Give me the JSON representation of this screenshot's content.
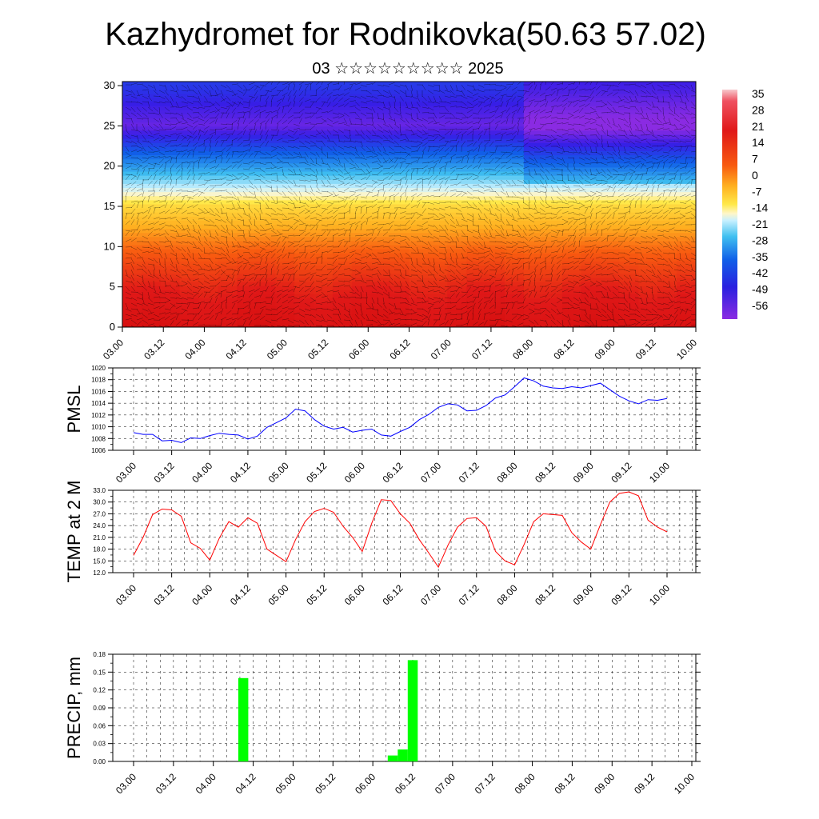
{
  "header": {
    "title": "Kazhydromet for Rodnikovka(50.63 57.02)",
    "subtitle": "03 ☆☆☆☆☆☆☆☆☆ 2025"
  },
  "chart_data": [
    {
      "type": "heatmap",
      "title": "",
      "xlabel": "",
      "ylabel": "",
      "x_ticks": [
        "03.00",
        "03.12",
        "04.00",
        "04.12",
        "05.00",
        "05.12",
        "06.00",
        "06.12",
        "07.00",
        "07.12",
        "08.00",
        "08.12",
        "09.00",
        "09.12",
        "10.00"
      ],
      "y_ticks": [
        0,
        5,
        10,
        15,
        20,
        25,
        30
      ],
      "ylim": [
        0,
        30.5
      ],
      "colorbar": {
        "labels": [
          35,
          28,
          21,
          14,
          7,
          0,
          -7,
          -14,
          -21,
          -28,
          -35,
          -42,
          -49,
          -56
        ],
        "range": [
          -60,
          38
        ]
      },
      "overlay": "wind barbs",
      "temperature_profile": {
        "levels": [
          0,
          5,
          10,
          15,
          20,
          25,
          30
        ],
        "values": [
          33,
          24,
          12,
          -2,
          -30,
          -56,
          -45
        ]
      },
      "colors": {
        "hot": "#e81818",
        "neutral": "#ffe94a",
        "cold": "#2a20e0",
        "coldest": "#8a2be2"
      }
    },
    {
      "type": "line",
      "title": "",
      "ylabel": "PMSL",
      "ylim": [
        1006,
        1020
      ],
      "y_ticks": [
        1006,
        1008,
        1010,
        1012,
        1014,
        1016,
        1018,
        1020
      ],
      "x_ticks": [
        "03.00",
        "03.12",
        "04.00",
        "04.12",
        "05.00",
        "05.12",
        "06.00",
        "06.12",
        "07.00",
        "07.12",
        "08.00",
        "08.12",
        "09.00",
        "09.12",
        "10.00"
      ],
      "x_hours_step": 3,
      "values": [
        1009.0,
        1008.7,
        1008.7,
        1007.6,
        1007.7,
        1007.3,
        1008.1,
        1008.0,
        1008.5,
        1008.9,
        1008.7,
        1008.6,
        1007.9,
        1008.4,
        1009.9,
        1010.7,
        1011.5,
        1013.0,
        1012.7,
        1011.2,
        1010.1,
        1009.6,
        1009.9,
        1009.1,
        1009.4,
        1009.6,
        1008.6,
        1008.4,
        1009.2,
        1009.9,
        1011.2,
        1012.1,
        1013.3,
        1013.9,
        1013.7,
        1012.7,
        1012.8,
        1013.6,
        1014.9,
        1015.4,
        1016.8,
        1018.3,
        1017.8,
        1016.9,
        1016.6,
        1016.5,
        1016.8,
        1016.6,
        1017.0,
        1017.4,
        1016.3,
        1015.2,
        1014.4,
        1013.9,
        1014.6,
        1014.5,
        1014.8
      ],
      "color": "#0000ff"
    },
    {
      "type": "line",
      "title": "",
      "ylabel": "TEMP at 2 M",
      "ylim": [
        12.0,
        33.0
      ],
      "y_ticks": [
        "12.0",
        "15.0",
        "18.0",
        "21.0",
        "24.0",
        "27.0",
        "30.0",
        "33.0"
      ],
      "x_ticks": [
        "03.00",
        "03.12",
        "04.00",
        "04.12",
        "05.00",
        "05.12",
        "06.00",
        "06.12",
        "07.00",
        "07.12",
        "08.00",
        "08.12",
        "09.00",
        "09.12",
        "10.00"
      ],
      "x_hours_step": 3,
      "values": [
        16.4,
        21.0,
        26.8,
        28.2,
        28.0,
        26.4,
        19.6,
        18.2,
        15.2,
        20.8,
        25.0,
        23.6,
        26.0,
        24.6,
        18.0,
        16.4,
        14.8,
        20.4,
        25.0,
        27.6,
        28.4,
        27.4,
        23.8,
        21.0,
        17.4,
        24.6,
        30.6,
        30.4,
        27.0,
        24.6,
        20.4,
        17.0,
        13.4,
        19.0,
        23.6,
        25.8,
        26.0,
        23.8,
        17.4,
        15.0,
        14.0,
        19.2,
        25.0,
        27.0,
        26.8,
        26.6,
        22.2,
        19.8,
        18.0,
        24.2,
        30.0,
        32.2,
        32.6,
        31.6,
        25.4,
        23.6,
        22.4
      ],
      "color": "#ff0000"
    },
    {
      "type": "bar",
      "title": "",
      "ylabel": "PRECIP, mm",
      "ylim": [
        0,
        0.18
      ],
      "y_ticks": [
        "0.00",
        "0.03",
        "0.06",
        "0.09",
        "0.12",
        "0.15",
        "0.18"
      ],
      "x_ticks": [
        "03.00",
        "03.12",
        "04.00",
        "04.12",
        "05.00",
        "05.12",
        "06.00",
        "06.12",
        "07.00",
        "07.12",
        "08.00",
        "08.12",
        "09.00",
        "09.12",
        "10.00"
      ],
      "bars": [
        {
          "hour": 33,
          "value": 0.14
        },
        {
          "hour": 78,
          "value": 0.01
        },
        {
          "hour": 81,
          "value": 0.02
        },
        {
          "hour": 84,
          "value": 0.17
        }
      ],
      "color": "#00ff00"
    }
  ]
}
